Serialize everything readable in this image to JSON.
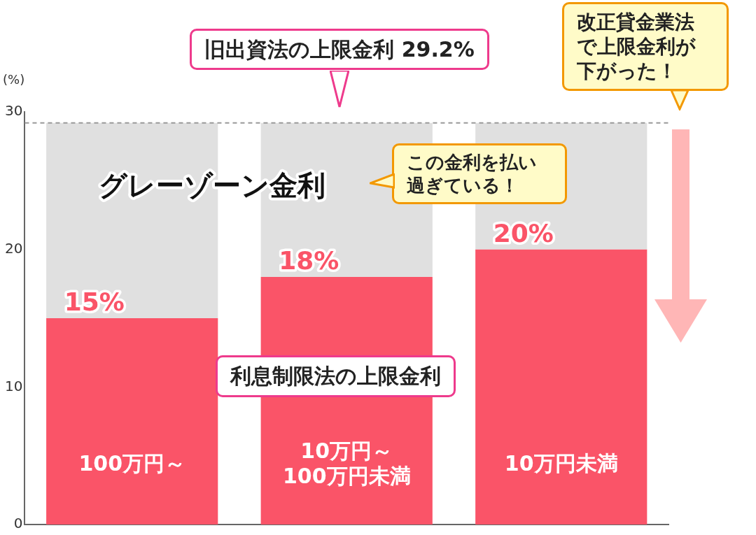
{
  "chart_data": {
    "type": "bar",
    "stacked": true,
    "categories": [
      "100万円～",
      "10万円～\n100万円未満",
      "10万円未満"
    ],
    "series": [
      {
        "name": "利息制限法の上限金利",
        "color": "#fa5468",
        "values": [
          15,
          18,
          20
        ],
        "value_labels": [
          "15%",
          "18%",
          "20%"
        ]
      },
      {
        "name": "グレーゾーン金利",
        "color": "#e0e0e0",
        "values": [
          14.2,
          11.2,
          9.2
        ]
      }
    ],
    "ylabel": "(%)",
    "ylim": [
      0,
      30
    ],
    "yticks": [
      0,
      10,
      20,
      30
    ],
    "grid": false,
    "legend": false,
    "ref_lines": [
      {
        "axis": "y",
        "value": 29.2,
        "label": "旧出資法の上限金利 29.2%",
        "color": "#999999",
        "line_style": "dashed"
      }
    ],
    "annotations": [
      "この金利を払い過ぎている！",
      "改正貸金業法で上限金利が下がった！"
    ]
  }
}
